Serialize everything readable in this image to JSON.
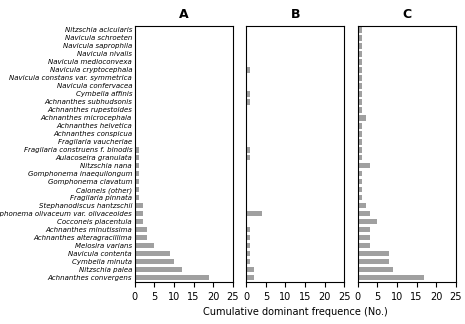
{
  "chart_data": [
    {
      "type": "bar",
      "orientation": "horizontal",
      "title": "A",
      "categories": [
        "Nitzschia acicularis",
        "Navicula schroeten",
        "Navicula saprophila",
        "Navicula nivalis",
        "Navicula medioconvexa",
        "Navicula cryptocephala",
        "Navicula constans var. symmetrica",
        "Navicula confervacea",
        "Cymbella affinis",
        "Achnanthes subhudsonis",
        "Achnanthes rupestoides",
        "Achnanthes microcephala",
        "Achnanthes helvetica",
        "Achnanthes conspicua",
        "Fragilaria vaucheriae",
        "Fragilaria construens f. binodis",
        "Aulacoseira granulata",
        "Nitzschia nana",
        "Gomphonema inaequilongum",
        "Gomphonema clavatum",
        "Caloneis (other)",
        "Fragilaria pinnata",
        "Stephanodiscus hantzschii",
        "Gomphonema olivaceum var. olivaceoides",
        "Cocconeis placentula",
        "Achnanthes minutissima",
        "Achnanthes alteragracillima",
        "Melosira varians",
        "Navicula contenta",
        "Cymbella minuta",
        "Nitzschia palea",
        "Achnanthes convergens"
      ],
      "values": [
        0,
        0,
        0,
        0,
        0,
        0,
        0,
        0,
        0,
        0,
        0,
        0,
        0,
        0,
        0,
        1,
        1,
        1,
        1,
        1,
        1,
        1,
        2,
        2,
        2,
        3,
        3,
        5,
        9,
        10,
        12,
        19
      ],
      "color": "#a0a0a0",
      "xlim": [
        0,
        25
      ],
      "xticks": [
        0,
        5,
        10,
        15,
        20,
        25
      ]
    },
    {
      "type": "bar",
      "orientation": "horizontal",
      "title": "B",
      "x_label": "Cumulative dominant frequence (No.)",
      "categories": [
        "Nitzschia acicularis",
        "Navicula schroeten",
        "Navicula saprophila",
        "Navicula nivalis",
        "Navicula medioconvexa",
        "Navicula cryptocephala",
        "Navicula constans var. symmetrica",
        "Navicula confervacea",
        "Cymbella affinis",
        "Achnanthes subhudsonis",
        "Achnanthes rupestoides",
        "Achnanthes microcephala",
        "Achnanthes helvetica",
        "Achnanthes conspicua",
        "Fragilaria vaucheriae",
        "Fragilaria construens f. binodis",
        "Aulacoseira granulata",
        "Nitzschia nana",
        "Gomphonema inaequilongum",
        "Gomphonema clavatum",
        "Caloneis (other)",
        "Fragilaria pinnata",
        "Stephanodiscus hantzschii",
        "Gomphonema olivaceum var. olivaceoides",
        "Cocconeis placentula",
        "Achnanthes minutissima",
        "Achnanthes alteragracillima",
        "Melosira varians",
        "Navicula contenta",
        "Cymbella minuta",
        "Nitzschia palea",
        "Achnanthes convergens"
      ],
      "values": [
        0,
        0,
        0,
        0,
        0,
        1,
        0,
        0,
        1,
        1,
        0,
        0,
        0,
        0,
        0,
        1,
        1,
        0,
        0,
        0,
        0,
        0,
        0,
        4,
        0,
        1,
        1,
        1,
        1,
        1,
        2,
        2
      ],
      "color": "#a0a0a0",
      "xlim": [
        0,
        25
      ],
      "xticks": [
        0,
        5,
        10,
        15,
        20,
        25
      ],
      "tick_labels": "x"
    },
    {
      "type": "bar",
      "orientation": "horizontal",
      "title": "C",
      "categories": [
        "Nitzschia acicularis",
        "Navicula schroeten",
        "Navicula saprophila",
        "Navicula nivalis",
        "Navicula medioconvexa",
        "Navicula cryptocephala",
        "Navicula constans var. symmetrica",
        "Navicula confervacea",
        "Cymbella affinis",
        "Achnanthes subhudsonis",
        "Achnanthes rupestoides",
        "Achnanthes microcephala",
        "Achnanthes helvetica",
        "Achnanthes conspicua",
        "Fragilaria vaucheriae",
        "Fragilaria construens f. binodis",
        "Aulacoseira granulata",
        "Nitzschia nana",
        "Gomphonema inaequilongum",
        "Gomphonema clavatum",
        "Caloneis (other)",
        "Fragilaria pinnata",
        "Stephanodiscus hantzschii",
        "Gomphonema olivaceum var. olivaceoides",
        "Cocconeis placentula",
        "Achnanthes minutissima",
        "Achnanthes alteragracillima",
        "Melosira varians",
        "Navicula contenta",
        "Cymbella minuta",
        "Nitzschia palea",
        "Achnanthes convergens"
      ],
      "values": [
        1,
        1,
        1,
        1,
        1,
        1,
        1,
        1,
        1,
        1,
        1,
        2,
        1,
        1,
        1,
        1,
        1,
        3,
        1,
        1,
        1,
        1,
        2,
        3,
        5,
        3,
        3,
        3,
        8,
        8,
        9,
        17
      ],
      "color": "#a0a0a0",
      "xlim": [
        0,
        25
      ],
      "xticks": [
        0,
        5,
        10,
        15,
        20,
        25
      ],
      "tick_labels": "x"
    }
  ]
}
